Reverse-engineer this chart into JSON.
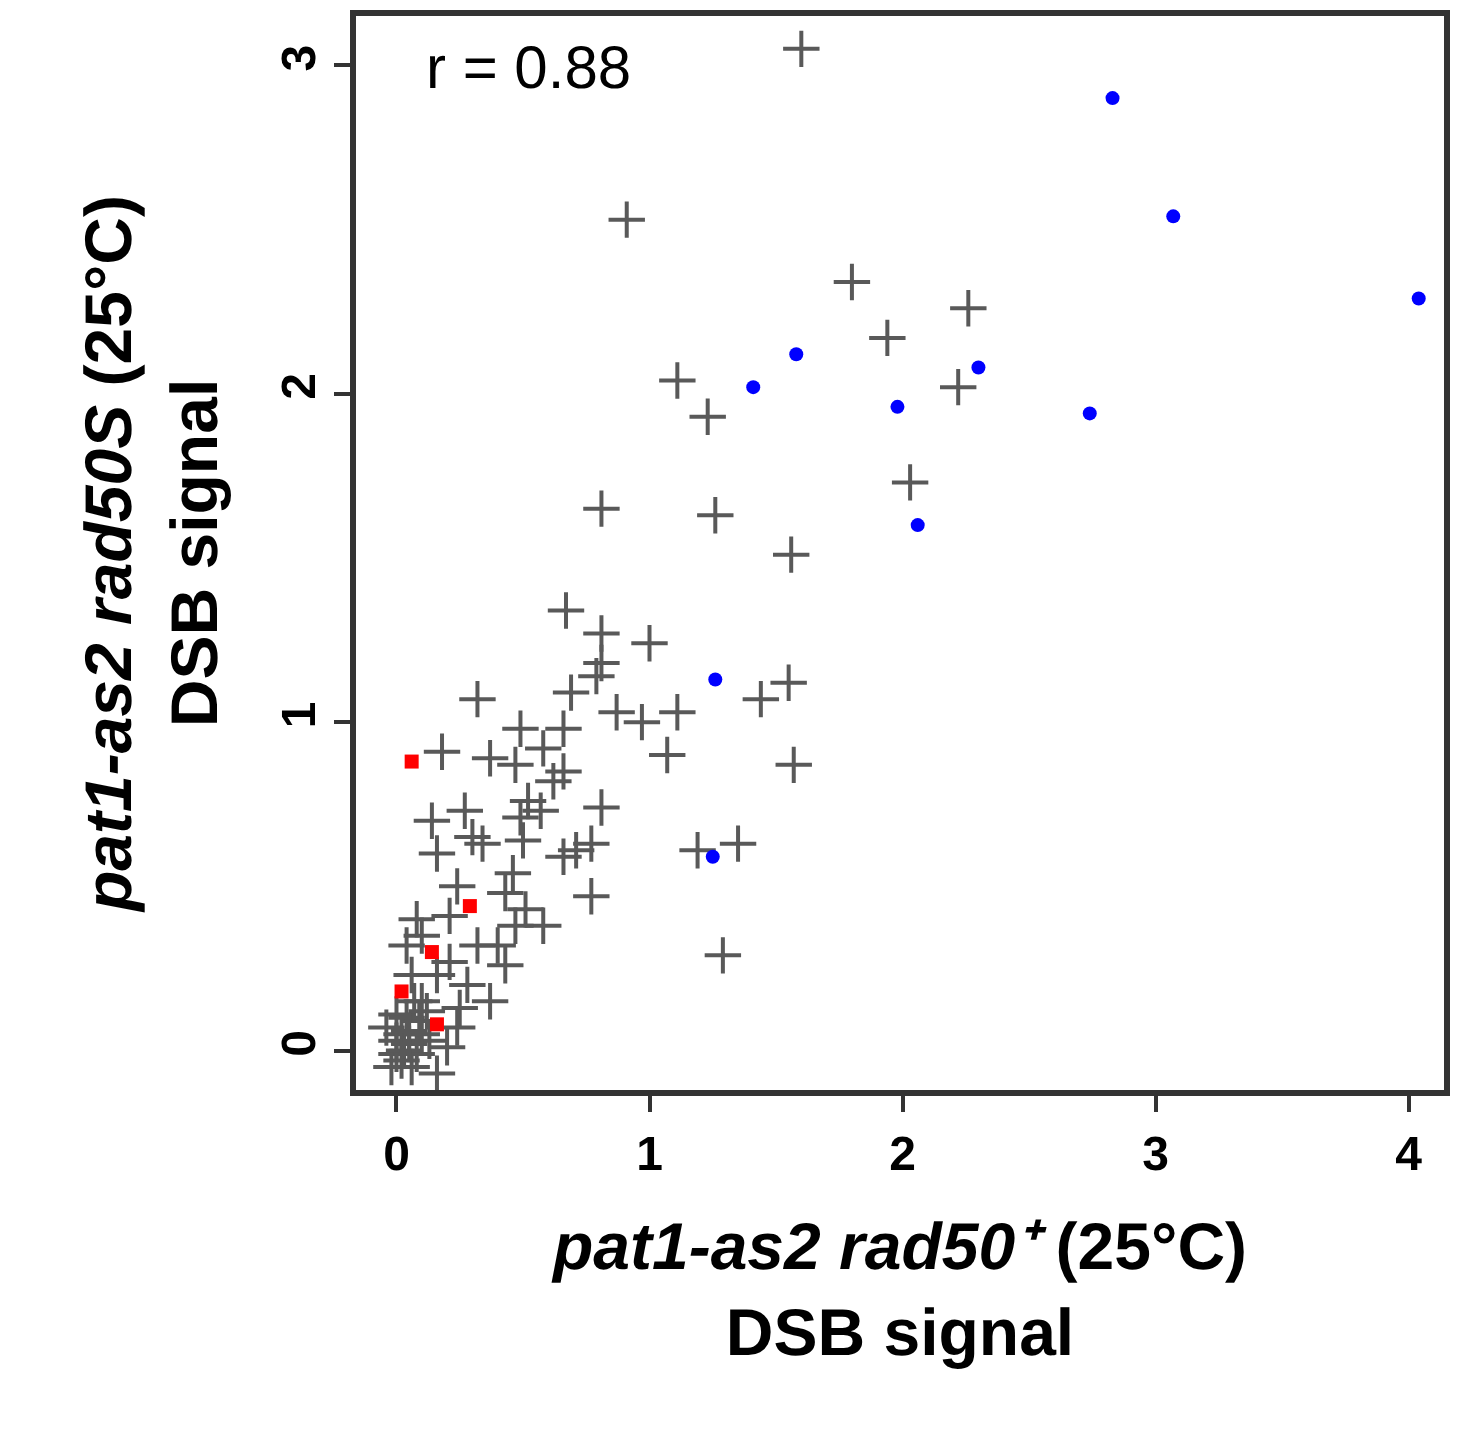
{
  "chart_data": {
    "type": "scatter",
    "xlabel": "pat1-as2 rad50⁺ (25°C)\nDSB signal",
    "ylabel": "pat1-as2 rad50S (25°C)\nDSB signal",
    "annotations": [
      "r = 0.88"
    ],
    "xlim": [
      -0.16,
      4.14
    ],
    "ylim": [
      -0.12,
      3.15
    ],
    "xticks": [
      0,
      1,
      2,
      3,
      4
    ],
    "yticks": [
      0,
      1,
      2,
      3
    ],
    "grid": false,
    "series": [
      {
        "color": "#595959",
        "marker": "cross",
        "x": [
          1.6,
          0.91,
          1.8,
          2.26,
          1.94,
          1.11,
          1.23,
          2.22,
          2.03,
          1.26,
          1.56,
          0.81,
          0.67,
          0.81,
          1.0,
          0.81,
          0.79,
          0.69,
          0.32,
          0.18,
          0.37,
          0.49,
          0.66,
          0.58,
          0.47,
          0.66,
          0.62,
          0.87,
          0.97,
          1.11,
          1.07,
          1.44,
          1.55,
          1.57,
          0.81,
          0.52,
          0.57,
          0.49,
          0.27,
          0.14,
          0.3,
          0.34,
          0.5,
          0.16,
          0.66,
          0.71,
          0.77,
          1.19,
          1.35,
          0.77,
          1.29,
          0.46,
          0.24,
          0.43,
          0.51,
          0.58,
          0.47,
          0.4,
          0.21,
          0.08,
          0.04,
          0.1,
          0.32,
          0.43,
          0.28,
          0.37,
          0.25,
          0.06,
          0.16,
          0.1,
          0.0,
          0.02,
          0.13,
          0.0,
          0.06,
          0.16,
          -0.02,
          0.2,
          0.24,
          0.09,
          0.21,
          0.0,
          0.08,
          -0.04,
          0.03,
          0.05,
          0.04,
          0.07,
          0.1,
          0.12,
          0.02,
          0.05
        ],
        "values": [
          3.05,
          2.53,
          2.34,
          2.26,
          2.17,
          2.04,
          1.93,
          2.02,
          1.73,
          1.63,
          1.51,
          1.65,
          1.34,
          1.27,
          1.24,
          1.18,
          1.14,
          1.09,
          1.07,
          0.91,
          0.89,
          0.98,
          0.98,
          0.92,
          0.87,
          0.85,
          0.82,
          1.03,
          1.0,
          1.03,
          0.9,
          1.07,
          1.12,
          0.87,
          0.74,
          0.76,
          0.73,
          0.71,
          0.73,
          0.7,
          0.65,
          0.63,
          0.64,
          0.6,
          0.59,
          0.61,
          0.63,
          0.61,
          0.63,
          0.47,
          0.29,
          0.54,
          0.5,
          0.48,
          0.43,
          0.38,
          0.38,
          0.32,
          0.41,
          0.4,
          0.32,
          0.35,
          0.32,
          0.26,
          0.2,
          0.15,
          0.13,
          0.23,
          0.23,
          0.15,
          0.11,
          0.05,
          0.03,
          -0.01,
          -0.05,
          -0.07,
          -0.05,
          0.01,
          0.07,
          0.09,
          0.27,
          0.03,
          -0.01,
          0.07,
          0.0,
          0.02,
          0.1,
          0.15,
          0.05,
          0.12,
          -0.03,
          0.06
        ]
      },
      {
        "color": "#0000ff",
        "marker": "circle",
        "x": [
          2.83,
          3.07,
          4.04,
          1.58,
          1.41,
          1.98,
          2.3,
          2.74,
          2.06,
          1.26,
          1.25
        ],
        "values": [
          2.9,
          2.54,
          2.29,
          2.12,
          2.02,
          1.96,
          2.08,
          1.94,
          1.6,
          1.13,
          0.59
        ]
      },
      {
        "color": "#ff0000",
        "marker": "square",
        "x": [
          0.06,
          0.29,
          0.14,
          0.02,
          0.16
        ],
        "values": [
          0.88,
          0.44,
          0.3,
          0.18,
          0.08
        ]
      }
    ]
  }
}
